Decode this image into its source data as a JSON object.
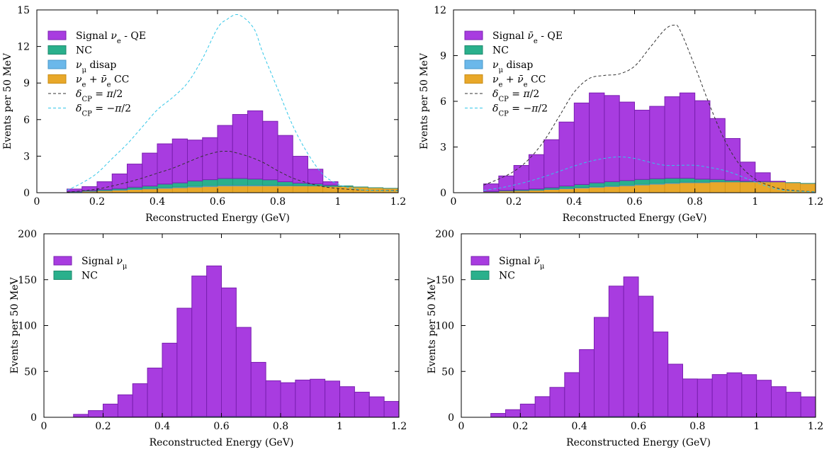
{
  "figure": {
    "colors": {
      "signal": "#a83ce0",
      "signal_edge": "#7a1fb0",
      "nc": "#2ab08c",
      "numu": "#6bb8ea",
      "cc": "#e8a82a",
      "dashed_pos": "#333333",
      "dashed_neg": "#33c7e8"
    }
  },
  "chart_data": [
    {
      "type": "bar",
      "id": "nue-qe",
      "xlabel": "Reconstructed Energy (GeV)",
      "ylabel": "Events per 50 MeV",
      "xlim": [
        0,
        1.2
      ],
      "ylim": [
        0,
        15
      ],
      "xticks": [
        "0",
        "0.2",
        "0.4",
        "0.6",
        "0.8",
        "1",
        "1.2"
      ],
      "yticks": [
        "0",
        "3",
        "6",
        "9",
        "12",
        "15"
      ],
      "yticks_values": [
        0,
        3,
        6,
        9,
        12,
        15
      ],
      "bin_edges": [
        0.1,
        0.15,
        0.2,
        0.25,
        0.3,
        0.35,
        0.4,
        0.45,
        0.5,
        0.55,
        0.6,
        0.65,
        0.7,
        0.75,
        0.8,
        0.85,
        0.9,
        0.95,
        1.0,
        1.05,
        1.1,
        1.15,
        1.2
      ],
      "stacks": [
        {
          "name": "cc",
          "values": [
            0.05,
            0.1,
            0.15,
            0.2,
            0.25,
            0.3,
            0.35,
            0.4,
            0.45,
            0.5,
            0.55,
            0.55,
            0.55,
            0.55,
            0.55,
            0.55,
            0.55,
            0.5,
            0.5,
            0.45,
            0.4,
            0.35
          ]
        },
        {
          "name": "numu",
          "values": [
            0.02,
            0.03,
            0.03,
            0.04,
            0.05,
            0.05,
            0.06,
            0.06,
            0.07,
            0.07,
            0.07,
            0.07,
            0.07,
            0.06,
            0.05,
            0.04,
            0.03,
            0.02,
            0.02,
            0.01,
            0.01,
            0.01
          ]
        },
        {
          "name": "nc",
          "values": [
            0.03,
            0.05,
            0.07,
            0.1,
            0.15,
            0.2,
            0.3,
            0.35,
            0.45,
            0.5,
            0.55,
            0.55,
            0.5,
            0.45,
            0.3,
            0.2,
            0.15,
            0.1,
            0.05,
            0.02,
            0.01,
            0.01
          ]
        },
        {
          "name": "signal",
          "values": [
            0.2,
            0.32,
            0.65,
            1.2,
            1.9,
            2.7,
            3.3,
            3.6,
            3.35,
            3.45,
            4.35,
            5.25,
            5.6,
            4.8,
            3.8,
            2.2,
            1.2,
            0.28,
            0.0,
            0.0,
            0.0,
            0.0
          ]
        }
      ],
      "curves": [
        {
          "name": "dcp_pos",
          "x": [
            0.1,
            0.15,
            0.2,
            0.25,
            0.3,
            0.35,
            0.4,
            0.45,
            0.5,
            0.55,
            0.6,
            0.63,
            0.65,
            0.7,
            0.75,
            0.8,
            0.85,
            0.9,
            0.95,
            1.0,
            1.05,
            1.1,
            1.2
          ],
          "y": [
            0.05,
            0.15,
            0.3,
            0.55,
            0.85,
            1.2,
            1.6,
            2.0,
            2.5,
            3.0,
            3.35,
            3.4,
            3.35,
            3.0,
            2.5,
            1.8,
            1.2,
            0.8,
            0.5,
            0.35,
            0.25,
            0.2,
            0.18
          ]
        },
        {
          "name": "dcp_neg",
          "x": [
            0.1,
            0.15,
            0.2,
            0.25,
            0.3,
            0.35,
            0.4,
            0.45,
            0.5,
            0.55,
            0.6,
            0.63,
            0.67,
            0.72,
            0.75,
            0.8,
            0.85,
            0.9,
            0.95,
            1.0,
            1.05,
            1.1,
            1.2
          ],
          "y": [
            0.2,
            0.8,
            1.6,
            2.8,
            4.0,
            5.4,
            6.8,
            7.8,
            9.0,
            11.0,
            13.5,
            14.2,
            14.6,
            13.5,
            11.5,
            8.5,
            5.5,
            3.2,
            1.5,
            0.7,
            0.35,
            0.2,
            0.15
          ]
        }
      ],
      "legend": [
        {
          "key": "signal",
          "kind": "box",
          "parts": [
            {
              "t": "Signal "
            },
            {
              "t": "ν",
              "i": true
            },
            {
              "t": "e",
              "sub": true
            },
            {
              "t": " - QE"
            }
          ]
        },
        {
          "key": "nc",
          "kind": "box",
          "parts": [
            {
              "t": "NC"
            }
          ]
        },
        {
          "key": "numu",
          "kind": "box",
          "parts": [
            {
              "t": "ν",
              "i": true
            },
            {
              "t": "μ",
              "sub": true
            },
            {
              "t": " disap"
            }
          ]
        },
        {
          "key": "cc",
          "kind": "box",
          "parts": [
            {
              "t": "ν",
              "i": true
            },
            {
              "t": "e",
              "sub": true
            },
            {
              "t": " + "
            },
            {
              "t": "ν̄",
              "i": true
            },
            {
              "t": "e",
              "sub": true
            },
            {
              "t": " CC"
            }
          ]
        },
        {
          "key": "dashed_pos",
          "kind": "line",
          "parts": [
            {
              "t": "δ",
              "i": true
            },
            {
              "t": "CP",
              "sub": true
            },
            {
              "t": " = "
            },
            {
              "t": "π",
              "i": true
            },
            {
              "t": "/2"
            }
          ]
        },
        {
          "key": "dashed_neg",
          "kind": "line",
          "parts": [
            {
              "t": "δ",
              "i": true
            },
            {
              "t": "CP",
              "sub": true
            },
            {
              "t": " = −"
            },
            {
              "t": "π",
              "i": true
            },
            {
              "t": "/2"
            }
          ]
        }
      ]
    },
    {
      "type": "bar",
      "id": "nuebar-qe",
      "xlabel": "Reconstructed Energy (GeV)",
      "ylabel": "Events per 50 MeV",
      "xlim": [
        0,
        1.2
      ],
      "ylim": [
        0,
        12
      ],
      "xticks": [
        "0",
        "0.2",
        "0.4",
        "0.6",
        "0.8",
        "1",
        "1.2"
      ],
      "yticks": [
        "0",
        "3",
        "6",
        "9",
        "12"
      ],
      "yticks_values": [
        0,
        3,
        6,
        9,
        12
      ],
      "bin_edges": [
        0.1,
        0.15,
        0.2,
        0.25,
        0.3,
        0.35,
        0.4,
        0.45,
        0.5,
        0.55,
        0.6,
        0.65,
        0.7,
        0.75,
        0.8,
        0.85,
        0.9,
        0.95,
        1.0,
        1.05,
        1.1,
        1.15,
        1.2
      ],
      "stacks": [
        {
          "name": "cc",
          "values": [
            0.05,
            0.1,
            0.12,
            0.15,
            0.2,
            0.25,
            0.3,
            0.35,
            0.4,
            0.45,
            0.5,
            0.55,
            0.6,
            0.65,
            0.65,
            0.7,
            0.7,
            0.7,
            0.7,
            0.7,
            0.65,
            0.6
          ]
        },
        {
          "name": "numu",
          "values": [
            0.01,
            0.02,
            0.02,
            0.03,
            0.03,
            0.04,
            0.04,
            0.05,
            0.05,
            0.05,
            0.05,
            0.05,
            0.05,
            0.04,
            0.04,
            0.03,
            0.03,
            0.02,
            0.02,
            0.01,
            0.01,
            0.01
          ]
        },
        {
          "name": "nc",
          "values": [
            0.02,
            0.03,
            0.05,
            0.07,
            0.1,
            0.15,
            0.2,
            0.25,
            0.28,
            0.3,
            0.32,
            0.32,
            0.3,
            0.26,
            0.2,
            0.14,
            0.08,
            0.04,
            0.02,
            0.01,
            0.01,
            0.01
          ]
        },
        {
          "name": "signal",
          "values": [
            0.5,
            0.95,
            1.6,
            2.25,
            3.15,
            4.2,
            5.35,
            5.9,
            5.65,
            5.15,
            4.55,
            4.75,
            5.35,
            5.6,
            5.15,
            4.0,
            2.75,
            1.25,
            0.57,
            0.03,
            0.0,
            0.0
          ]
        }
      ],
      "curves": [
        {
          "name": "dcp_pos",
          "x": [
            0.1,
            0.15,
            0.2,
            0.25,
            0.3,
            0.35,
            0.4,
            0.45,
            0.5,
            0.55,
            0.6,
            0.65,
            0.7,
            0.73,
            0.75,
            0.8,
            0.85,
            0.9,
            0.95,
            1.0,
            1.05,
            1.1,
            1.2
          ],
          "y": [
            0.5,
            0.9,
            1.4,
            2.2,
            3.4,
            5.0,
            6.6,
            7.5,
            7.7,
            7.8,
            8.3,
            9.5,
            10.7,
            11.0,
            10.7,
            8.3,
            5.7,
            3.4,
            1.8,
            0.9,
            0.45,
            0.2,
            0.05
          ]
        },
        {
          "name": "dcp_neg",
          "x": [
            0.1,
            0.15,
            0.2,
            0.25,
            0.3,
            0.35,
            0.4,
            0.45,
            0.5,
            0.55,
            0.6,
            0.65,
            0.7,
            0.75,
            0.8,
            0.85,
            0.9,
            0.95,
            1.0,
            1.05,
            1.1,
            1.2
          ],
          "y": [
            0.15,
            0.3,
            0.5,
            0.75,
            1.05,
            1.4,
            1.75,
            2.05,
            2.25,
            2.35,
            2.25,
            2.0,
            1.8,
            1.8,
            1.8,
            1.65,
            1.45,
            1.1,
            0.7,
            0.35,
            0.15,
            0.05
          ]
        }
      ],
      "legend": [
        {
          "key": "signal",
          "kind": "box",
          "parts": [
            {
              "t": "Signal "
            },
            {
              "t": "ν̄",
              "i": true
            },
            {
              "t": "e",
              "sub": true
            },
            {
              "t": " - QE"
            }
          ]
        },
        {
          "key": "nc",
          "kind": "box",
          "parts": [
            {
              "t": "NC"
            }
          ]
        },
        {
          "key": "numu",
          "kind": "box",
          "parts": [
            {
              "t": "ν",
              "i": true
            },
            {
              "t": "μ",
              "sub": true
            },
            {
              "t": " disap"
            }
          ]
        },
        {
          "key": "cc",
          "kind": "box",
          "parts": [
            {
              "t": "ν",
              "i": true
            },
            {
              "t": "e",
              "sub": true
            },
            {
              "t": " + "
            },
            {
              "t": "ν̄",
              "i": true
            },
            {
              "t": "e",
              "sub": true
            },
            {
              "t": " CC"
            }
          ]
        },
        {
          "key": "dashed_pos",
          "kind": "line",
          "parts": [
            {
              "t": "δ",
              "i": true
            },
            {
              "t": "CP",
              "sub": true
            },
            {
              "t": " = "
            },
            {
              "t": "π",
              "i": true
            },
            {
              "t": "/2"
            }
          ]
        },
        {
          "key": "dashed_neg",
          "kind": "line",
          "parts": [
            {
              "t": "δ",
              "i": true
            },
            {
              "t": "CP",
              "sub": true
            },
            {
              "t": " = −"
            },
            {
              "t": "π",
              "i": true
            },
            {
              "t": "/2"
            }
          ]
        }
      ]
    },
    {
      "type": "bar",
      "id": "numu",
      "xlabel": "Reconstructed Energy (GeV)",
      "ylabel": "Events per 50 MeV",
      "xlim": [
        0,
        1.2
      ],
      "ylim": [
        0,
        200
      ],
      "xticks": [
        "0",
        "0.2",
        "0.4",
        "0.6",
        "0.8",
        "1",
        "1.2"
      ],
      "yticks": [
        "0",
        "50",
        "100",
        "150",
        "200"
      ],
      "yticks_values": [
        0,
        50,
        100,
        150,
        200
      ],
      "bin_edges": [
        0.1,
        0.15,
        0.2,
        0.25,
        0.3,
        0.35,
        0.4,
        0.45,
        0.5,
        0.55,
        0.6,
        0.65,
        0.7,
        0.75,
        0.8,
        0.85,
        0.9,
        0.95,
        1.0,
        1.05,
        1.1,
        1.15,
        1.2
      ],
      "stacks": [
        {
          "name": "nc",
          "values": [
            0.2,
            0.3,
            0.4,
            0.5,
            0.6,
            0.7,
            0.8,
            0.9,
            1.0,
            1.0,
            1.0,
            1.0,
            0.9,
            0.8,
            0.7,
            0.6,
            0.5,
            0.5,
            0.4,
            0.4,
            0.3,
            0.3
          ]
        },
        {
          "name": "signal",
          "values": [
            3,
            7,
            14,
            24,
            36,
            53,
            80,
            118,
            153,
            164,
            140,
            97,
            59,
            39,
            37,
            40,
            41,
            39,
            33,
            27,
            22,
            17
          ]
        }
      ],
      "curves": [],
      "legend": [
        {
          "key": "signal",
          "kind": "box",
          "parts": [
            {
              "t": "Signal "
            },
            {
              "t": "ν",
              "i": true
            },
            {
              "t": "μ",
              "sub": true
            }
          ]
        },
        {
          "key": "nc",
          "kind": "box",
          "parts": [
            {
              "t": "NC"
            }
          ]
        }
      ]
    },
    {
      "type": "bar",
      "id": "numubar",
      "xlabel": "Reconstructed Energy (GeV)",
      "ylabel": "Events per 50 MeV",
      "xlim": [
        0,
        1.2
      ],
      "ylim": [
        0,
        200
      ],
      "xticks": [
        "0",
        "0.2",
        "0.4",
        "0.6",
        "0.8",
        "1",
        "1.2"
      ],
      "yticks": [
        "0",
        "50",
        "100",
        "150",
        "200"
      ],
      "yticks_values": [
        0,
        50,
        100,
        150,
        200
      ],
      "bin_edges": [
        0.1,
        0.15,
        0.2,
        0.25,
        0.3,
        0.35,
        0.4,
        0.45,
        0.5,
        0.55,
        0.6,
        0.65,
        0.7,
        0.75,
        0.8,
        0.85,
        0.9,
        0.95,
        1.0,
        1.05,
        1.1,
        1.15,
        1.2
      ],
      "stacks": [
        {
          "name": "nc",
          "values": [
            0.2,
            0.3,
            0.4,
            0.5,
            0.6,
            0.7,
            0.8,
            0.9,
            1.0,
            1.0,
            1.0,
            1.0,
            0.9,
            0.8,
            0.7,
            0.6,
            0.5,
            0.5,
            0.4,
            0.4,
            0.3,
            0.3
          ]
        },
        {
          "name": "signal",
          "values": [
            4,
            8,
            14,
            22,
            32,
            48,
            73,
            108,
            142,
            152,
            131,
            92,
            57,
            41,
            41,
            46,
            48,
            46,
            40,
            33,
            27,
            22
          ]
        }
      ],
      "curves": [],
      "legend": [
        {
          "key": "signal",
          "kind": "box",
          "parts": [
            {
              "t": "Signal "
            },
            {
              "t": "ν̄",
              "i": true
            },
            {
              "t": "μ",
              "sub": true
            }
          ]
        },
        {
          "key": "nc",
          "kind": "box",
          "parts": [
            {
              "t": "NC"
            }
          ]
        }
      ]
    }
  ]
}
